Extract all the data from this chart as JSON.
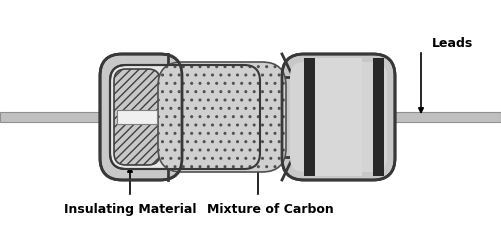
{
  "bg_color": "#ffffff",
  "body_gray": "#c8c8c8",
  "body_dark": "#383838",
  "inner_gray": "#e8e8e8",
  "lead_color": "#c0c0c0",
  "lead_edge": "#909090",
  "hatch_fill": "#c8c8c8",
  "carbon_fill": "#d0d0d0",
  "white_fill": "#f5f5f5",
  "label_insulating": "Insulating Material",
  "label_carbon": "Mixture of Carbon",
  "label_leads": "Leads",
  "label_fontsize": 9,
  "figsize": [
    5.01,
    2.35
  ],
  "dpi": 100
}
